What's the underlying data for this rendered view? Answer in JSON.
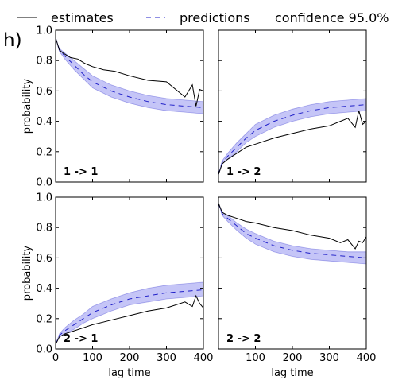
{
  "figure_label": "h)",
  "legend": {
    "estimates": "estimates",
    "predictions": "predictions",
    "confidence": "confidence 95.0%"
  },
  "colors": {
    "estimate_line": "#000000",
    "prediction_line": "#1f1fc8",
    "confidence_fill": "#8c8cf0",
    "axis": "#000000"
  },
  "chart_data": [
    {
      "type": "line",
      "panel": "1 -> 1",
      "xlabel": "",
      "ylabel": "probability",
      "xlim": [
        0,
        400
      ],
      "ylim": [
        0,
        1.0
      ],
      "x_ticks": [],
      "y_ticks": [
        "0.0",
        "0.2",
        "0.4",
        "0.6",
        "0.8",
        "1.0"
      ],
      "estimates": {
        "x": [
          0,
          10,
          20,
          40,
          60,
          80,
          100,
          130,
          160,
          200,
          250,
          300,
          330,
          350,
          370,
          380,
          390,
          400
        ],
        "y": [
          0.95,
          0.87,
          0.85,
          0.82,
          0.81,
          0.78,
          0.76,
          0.74,
          0.73,
          0.7,
          0.67,
          0.66,
          0.6,
          0.56,
          0.64,
          0.5,
          0.61,
          0.6
        ]
      },
      "predictions": {
        "x": [
          0,
          10,
          25,
          50,
          75,
          100,
          150,
          200,
          250,
          300,
          350,
          400
        ],
        "y": [
          0.95,
          0.87,
          0.83,
          0.77,
          0.71,
          0.66,
          0.6,
          0.56,
          0.53,
          0.51,
          0.5,
          0.49
        ]
      },
      "confidence": {
        "lower": [
          0.95,
          0.86,
          0.81,
          0.74,
          0.68,
          0.62,
          0.56,
          0.52,
          0.49,
          0.47,
          0.46,
          0.45
        ],
        "upper": [
          0.95,
          0.88,
          0.85,
          0.8,
          0.75,
          0.7,
          0.64,
          0.6,
          0.57,
          0.55,
          0.54,
          0.53
        ]
      }
    },
    {
      "type": "line",
      "panel": "1 -> 2",
      "xlabel": "",
      "ylabel": "",
      "xlim": [
        0,
        400
      ],
      "ylim": [
        0,
        1.0
      ],
      "x_ticks": [],
      "y_ticks": [],
      "estimates": {
        "x": [
          0,
          10,
          25,
          50,
          75,
          100,
          150,
          200,
          250,
          300,
          330,
          350,
          370,
          380,
          390,
          400
        ],
        "y": [
          0.05,
          0.12,
          0.15,
          0.19,
          0.23,
          0.25,
          0.29,
          0.32,
          0.35,
          0.37,
          0.4,
          0.42,
          0.36,
          0.47,
          0.38,
          0.4
        ]
      },
      "predictions": {
        "x": [
          0,
          10,
          25,
          50,
          75,
          100,
          150,
          200,
          250,
          300,
          350,
          400
        ],
        "y": [
          0.05,
          0.13,
          0.17,
          0.23,
          0.29,
          0.34,
          0.4,
          0.44,
          0.47,
          0.49,
          0.5,
          0.51
        ]
      },
      "confidence": {
        "lower": [
          0.05,
          0.12,
          0.15,
          0.2,
          0.26,
          0.3,
          0.36,
          0.4,
          0.43,
          0.45,
          0.46,
          0.47
        ],
        "upper": [
          0.05,
          0.14,
          0.19,
          0.26,
          0.32,
          0.38,
          0.44,
          0.48,
          0.51,
          0.53,
          0.54,
          0.55
        ]
      }
    },
    {
      "type": "line",
      "panel": "2 -> 1",
      "xlabel": "lag time",
      "ylabel": "probability",
      "xlim": [
        0,
        400
      ],
      "ylim": [
        0,
        1.0
      ],
      "x_ticks": [
        "0",
        "100",
        "200",
        "300",
        "400"
      ],
      "y_ticks": [
        "0.0",
        "0.2",
        "0.4",
        "0.6",
        "0.8",
        "1.0"
      ],
      "estimates": {
        "x": [
          0,
          10,
          25,
          50,
          75,
          100,
          150,
          200,
          250,
          300,
          350,
          370,
          380,
          390,
          400
        ],
        "y": [
          0.03,
          0.08,
          0.1,
          0.12,
          0.14,
          0.16,
          0.19,
          0.22,
          0.25,
          0.27,
          0.31,
          0.28,
          0.35,
          0.3,
          0.27
        ]
      },
      "predictions": {
        "x": [
          0,
          10,
          25,
          50,
          75,
          100,
          150,
          200,
          250,
          300,
          350,
          400
        ],
        "y": [
          0.03,
          0.09,
          0.12,
          0.16,
          0.2,
          0.24,
          0.29,
          0.33,
          0.35,
          0.37,
          0.38,
          0.39
        ]
      },
      "confidence": {
        "lower": [
          0.03,
          0.08,
          0.1,
          0.13,
          0.17,
          0.2,
          0.25,
          0.29,
          0.31,
          0.33,
          0.34,
          0.35
        ],
        "upper": [
          0.03,
          0.1,
          0.14,
          0.19,
          0.23,
          0.28,
          0.33,
          0.37,
          0.4,
          0.42,
          0.43,
          0.44
        ]
      }
    },
    {
      "type": "line",
      "panel": "2 -> 2",
      "xlabel": "lag time",
      "ylabel": "",
      "xlim": [
        0,
        400
      ],
      "ylim": [
        0,
        1.0
      ],
      "x_ticks": [
        "100",
        "200",
        "300",
        "400"
      ],
      "y_ticks": [],
      "estimates": {
        "x": [
          0,
          10,
          25,
          50,
          75,
          100,
          150,
          200,
          250,
          300,
          330,
          350,
          370,
          380,
          390,
          400
        ],
        "y": [
          0.96,
          0.9,
          0.88,
          0.86,
          0.84,
          0.83,
          0.8,
          0.78,
          0.75,
          0.73,
          0.7,
          0.72,
          0.66,
          0.71,
          0.7,
          0.74
        ]
      },
      "predictions": {
        "x": [
          0,
          10,
          25,
          50,
          75,
          100,
          150,
          200,
          250,
          300,
          350,
          400
        ],
        "y": [
          0.96,
          0.89,
          0.86,
          0.81,
          0.76,
          0.73,
          0.68,
          0.65,
          0.63,
          0.62,
          0.61,
          0.6
        ]
      },
      "confidence": {
        "lower": [
          0.96,
          0.88,
          0.84,
          0.78,
          0.73,
          0.69,
          0.64,
          0.61,
          0.59,
          0.58,
          0.57,
          0.56
        ],
        "upper": [
          0.96,
          0.9,
          0.88,
          0.83,
          0.79,
          0.76,
          0.71,
          0.68,
          0.66,
          0.65,
          0.64,
          0.64
        ]
      }
    }
  ]
}
